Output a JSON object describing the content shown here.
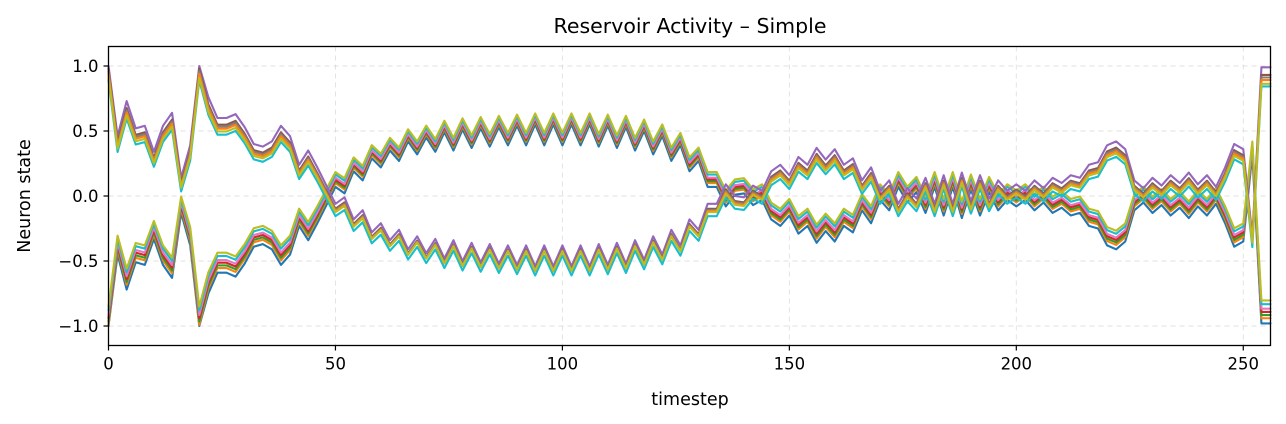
{
  "chart_data": {
    "type": "line",
    "title": "Reservoir Activity – Simple",
    "xlabel": "timestep",
    "ylabel": "Neuron state",
    "xlim": [
      0,
      256
    ],
    "ylim": [
      -1.15,
      1.15
    ],
    "xticks": [
      0,
      50,
      100,
      150,
      200,
      250
    ],
    "xtick_labels": [
      "0",
      "50",
      "100",
      "150",
      "200",
      "250"
    ],
    "yticks": [
      -1.0,
      -0.5,
      0.0,
      0.5,
      1.0
    ],
    "ytick_labels": [
      "−1.0",
      "−0.5",
      "0.0",
      "0.5",
      "1.0"
    ],
    "grid": true,
    "x": [
      0,
      2,
      4,
      6,
      8,
      10,
      12,
      14,
      16,
      18,
      20,
      22,
      24,
      26,
      28,
      30,
      32,
      34,
      36,
      38,
      40,
      42,
      44,
      46,
      48,
      50,
      52,
      54,
      56,
      58,
      60,
      62,
      64,
      66,
      68,
      70,
      72,
      74,
      76,
      78,
      80,
      82,
      84,
      86,
      88,
      90,
      92,
      94,
      96,
      98,
      100,
      102,
      104,
      106,
      108,
      110,
      112,
      114,
      116,
      118,
      120,
      122,
      124,
      126,
      128,
      130,
      132,
      134,
      136,
      138,
      140,
      142,
      144,
      146,
      148,
      150,
      152,
      154,
      156,
      158,
      160,
      162,
      164,
      166,
      168,
      170,
      172,
      174,
      176,
      178,
      180,
      182,
      184,
      186,
      188,
      190,
      192,
      194,
      196,
      198,
      200,
      202,
      204,
      206,
      208,
      210,
      212,
      214,
      216,
      218,
      220,
      222,
      224,
      226,
      228,
      230,
      232,
      234,
      236,
      238,
      240,
      242,
      244,
      246,
      248,
      250,
      252,
      254,
      256
    ],
    "envelope": [
      1.0,
      0.42,
      0.69,
      0.48,
      0.5,
      0.3,
      0.5,
      0.6,
      0.1,
      0.35,
      1.0,
      0.72,
      0.56,
      0.56,
      0.59,
      0.49,
      0.36,
      0.34,
      0.38,
      0.5,
      0.42,
      0.2,
      0.31,
      0.18,
      0.04,
      -0.1,
      -0.05,
      -0.22,
      -0.15,
      -0.32,
      -0.25,
      -0.38,
      -0.3,
      -0.45,
      -0.35,
      -0.48,
      -0.37,
      -0.52,
      -0.38,
      -0.54,
      -0.4,
      -0.55,
      -0.41,
      -0.56,
      -0.42,
      -0.57,
      -0.42,
      -0.58,
      -0.42,
      -0.58,
      -0.42,
      -0.58,
      -0.42,
      -0.58,
      -0.41,
      -0.57,
      -0.4,
      -0.56,
      -0.38,
      -0.53,
      -0.35,
      -0.49,
      -0.3,
      -0.42,
      -0.22,
      -0.3,
      -0.1,
      -0.1,
      0.05,
      -0.04,
      -0.05,
      0.04,
      0.0,
      0.15,
      0.2,
      0.12,
      0.26,
      0.2,
      0.33,
      0.24,
      0.32,
      0.2,
      0.25,
      0.08,
      0.18,
      0.0,
      0.08,
      -0.1,
      0.02,
      -0.06,
      0.1,
      -0.1,
      0.12,
      -0.1,
      0.14,
      -0.08,
      0.12,
      -0.06,
      0.08,
      0.0,
      0.05,
      0.0,
      0.08,
      0.02,
      0.1,
      0.06,
      0.12,
      0.1,
      0.2,
      0.22,
      0.35,
      0.38,
      0.32,
      0.08,
      0.02,
      0.1,
      0.04,
      0.12,
      0.06,
      0.14,
      0.05,
      0.12,
      0.03,
      0.18,
      0.36,
      0.32,
      -0.35,
      0.95,
      0.95
    ],
    "series": [
      {
        "color": "#1f77b4",
        "sign": -1,
        "scale": 1.0,
        "offset": -0.03
      },
      {
        "color": "#ff7f0e",
        "sign": -1,
        "scale": 0.99,
        "offset": 0.0
      },
      {
        "color": "#2ca02c",
        "sign": -1,
        "scale": 0.98,
        "offset": 0.015
      },
      {
        "color": "#d62728",
        "sign": -1,
        "scale": 0.97,
        "offset": 0.03
      },
      {
        "color": "#e377c2",
        "sign": -1,
        "scale": 0.96,
        "offset": 0.045
      },
      {
        "color": "#17becf",
        "sign": -1,
        "scale": 0.95,
        "offset": 0.07
      },
      {
        "color": "#bcbd22",
        "sign": -1,
        "scale": 0.94,
        "offset": 0.09
      },
      {
        "color": "#9467bd",
        "sign": 1,
        "scale": 1.0,
        "offset": 0.04
      },
      {
        "color": "#8c564b",
        "sign": 1,
        "scale": 0.98,
        "offset": 0.0
      },
      {
        "color": "#7f7f7f",
        "sign": 1,
        "scale": 0.97,
        "offset": -0.01
      },
      {
        "color": "#17becf",
        "sign": 1,
        "scale": 0.95,
        "offset": -0.06
      },
      {
        "color": "#ff7f0e",
        "sign": 1,
        "scale": 0.96,
        "offset": -0.02
      },
      {
        "color": "#bcbd22",
        "sign": 1,
        "scale": 0.94,
        "offset": -0.03
      }
    ]
  }
}
